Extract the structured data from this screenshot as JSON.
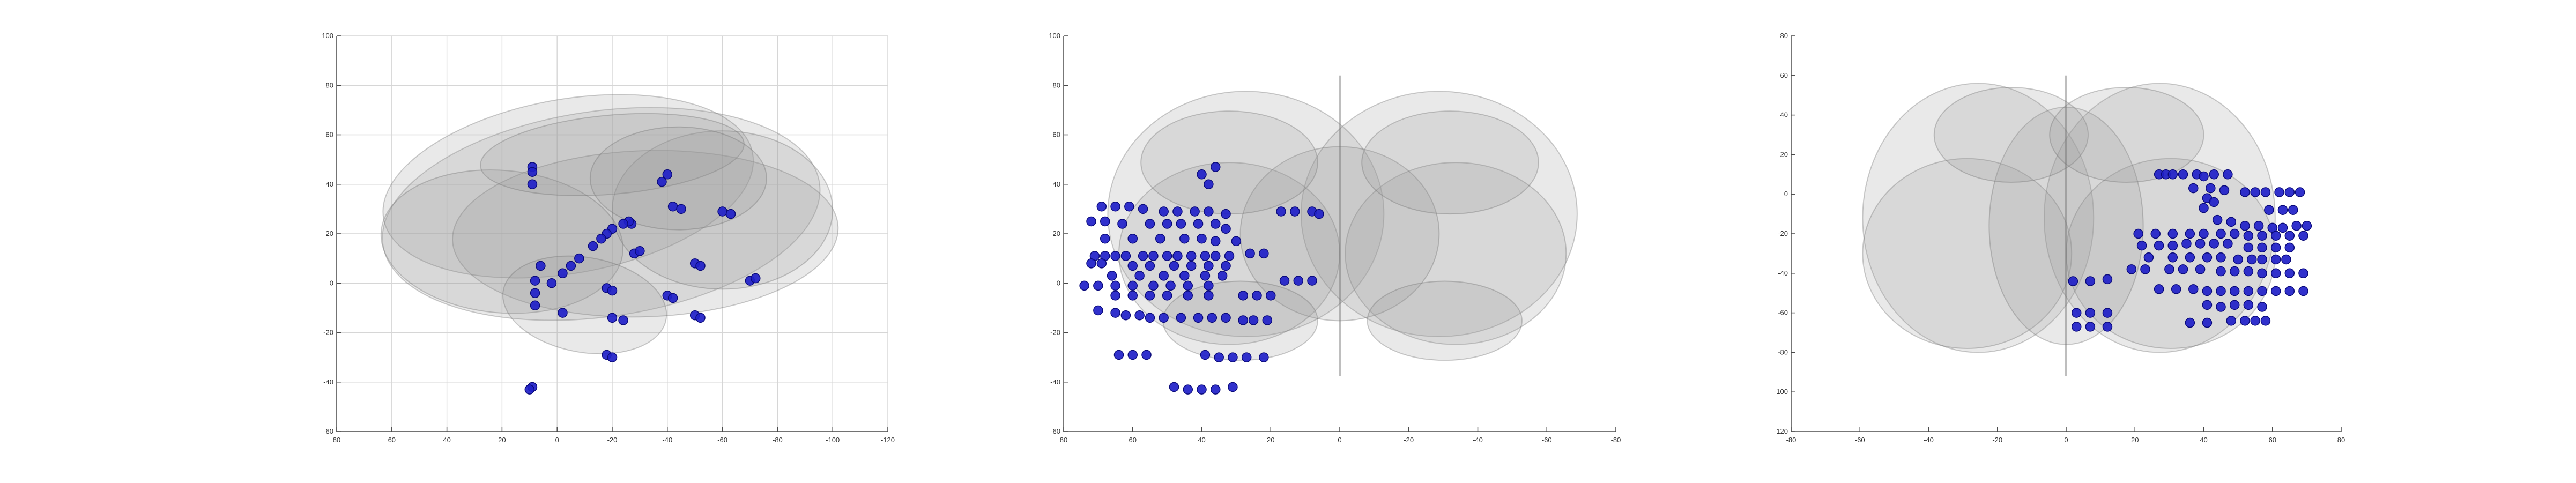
{
  "figure": {
    "background": "#ffffff",
    "brain_fill": "#9a9a9a",
    "brain_edge": "#6e6e6e",
    "electrode_color": "#1f1fc8",
    "electrode_edge": "#0a0a7a",
    "grid_color": "#d6d6d6",
    "axis_color": "#4a4a4a"
  },
  "chart_data": [
    {
      "type": "scatter",
      "view": "sagittal",
      "title": "",
      "xlabel": "",
      "ylabel": "",
      "grid": true,
      "xlim": [
        80,
        -120
      ],
      "ylim": [
        -60,
        100
      ],
      "xticks": [
        80,
        60,
        40,
        20,
        0,
        -20,
        -40,
        -60,
        -80,
        -100,
        -120
      ],
      "yticks": [
        -60,
        -40,
        -20,
        0,
        20,
        40,
        60,
        80,
        100
      ],
      "points": [
        {
          "x": 9,
          "y": 47
        },
        {
          "x": 9,
          "y": 45
        },
        {
          "x": 9,
          "y": 40
        },
        {
          "x": -38,
          "y": 41
        },
        {
          "x": -40,
          "y": 44
        },
        {
          "x": -42,
          "y": 31
        },
        {
          "x": -45,
          "y": 30
        },
        {
          "x": -60,
          "y": 29
        },
        {
          "x": -63,
          "y": 28
        },
        {
          "x": -27,
          "y": 24
        },
        {
          "x": -26,
          "y": 25
        },
        {
          "x": -24,
          "y": 24
        },
        {
          "x": -20,
          "y": 22
        },
        {
          "x": -18,
          "y": 20
        },
        {
          "x": -16,
          "y": 18
        },
        {
          "x": -13,
          "y": 15
        },
        {
          "x": -28,
          "y": 12
        },
        {
          "x": -30,
          "y": 13
        },
        {
          "x": -8,
          "y": 10
        },
        {
          "x": -5,
          "y": 7
        },
        {
          "x": -2,
          "y": 4
        },
        {
          "x": 2,
          "y": 0
        },
        {
          "x": 6,
          "y": 7
        },
        {
          "x": 8,
          "y": 1
        },
        {
          "x": 8,
          "y": -4
        },
        {
          "x": 8,
          "y": -9
        },
        {
          "x": -50,
          "y": 8
        },
        {
          "x": -52,
          "y": 7
        },
        {
          "x": -70,
          "y": 1
        },
        {
          "x": -72,
          "y": 2
        },
        {
          "x": -18,
          "y": -2
        },
        {
          "x": -20,
          "y": -3
        },
        {
          "x": -40,
          "y": -5
        },
        {
          "x": -42,
          "y": -6
        },
        {
          "x": -2,
          "y": -12
        },
        {
          "x": -20,
          "y": -14
        },
        {
          "x": -24,
          "y": -15
        },
        {
          "x": -50,
          "y": -13
        },
        {
          "x": -52,
          "y": -14
        },
        {
          "x": -18,
          "y": -29
        },
        {
          "x": -20,
          "y": -30
        },
        {
          "x": 9,
          "y": -42
        },
        {
          "x": 10,
          "y": -43
        }
      ]
    },
    {
      "type": "scatter",
      "view": "coronal",
      "title": "",
      "xlabel": "",
      "ylabel": "",
      "grid": false,
      "xlim": [
        80,
        -80
      ],
      "ylim": [
        -60,
        100
      ],
      "xticks": [
        80,
        60,
        40,
        20,
        0,
        -20,
        -40,
        -60,
        -80
      ],
      "yticks": [
        -60,
        -40,
        -20,
        0,
        20,
        40,
        60,
        80,
        100
      ],
      "points": [
        {
          "x": 36,
          "y": 47
        },
        {
          "x": 40,
          "y": 44
        },
        {
          "x": 38,
          "y": 40
        },
        {
          "x": 69,
          "y": 31
        },
        {
          "x": 65,
          "y": 31
        },
        {
          "x": 61,
          "y": 31
        },
        {
          "x": 57,
          "y": 30
        },
        {
          "x": 51,
          "y": 29
        },
        {
          "x": 47,
          "y": 29
        },
        {
          "x": 42,
          "y": 29
        },
        {
          "x": 38,
          "y": 29
        },
        {
          "x": 33,
          "y": 28
        },
        {
          "x": 17,
          "y": 29
        },
        {
          "x": 13,
          "y": 29
        },
        {
          "x": 8,
          "y": 29
        },
        {
          "x": 6,
          "y": 28
        },
        {
          "x": 72,
          "y": 25
        },
        {
          "x": 68,
          "y": 25
        },
        {
          "x": 63,
          "y": 24
        },
        {
          "x": 55,
          "y": 24
        },
        {
          "x": 50,
          "y": 24
        },
        {
          "x": 46,
          "y": 24
        },
        {
          "x": 41,
          "y": 24
        },
        {
          "x": 36,
          "y": 24
        },
        {
          "x": 33,
          "y": 22
        },
        {
          "x": 68,
          "y": 18
        },
        {
          "x": 60,
          "y": 18
        },
        {
          "x": 52,
          "y": 18
        },
        {
          "x": 45,
          "y": 18
        },
        {
          "x": 40,
          "y": 18
        },
        {
          "x": 36,
          "y": 17
        },
        {
          "x": 30,
          "y": 17
        },
        {
          "x": 71,
          "y": 11
        },
        {
          "x": 68,
          "y": 11
        },
        {
          "x": 65,
          "y": 11
        },
        {
          "x": 62,
          "y": 11
        },
        {
          "x": 57,
          "y": 11
        },
        {
          "x": 54,
          "y": 11
        },
        {
          "x": 50,
          "y": 11
        },
        {
          "x": 47,
          "y": 11
        },
        {
          "x": 43,
          "y": 11
        },
        {
          "x": 39,
          "y": 11
        },
        {
          "x": 36,
          "y": 11
        },
        {
          "x": 32,
          "y": 11
        },
        {
          "x": 26,
          "y": 12
        },
        {
          "x": 22,
          "y": 12
        },
        {
          "x": 72,
          "y": 8
        },
        {
          "x": 69,
          "y": 8
        },
        {
          "x": 60,
          "y": 7
        },
        {
          "x": 55,
          "y": 7
        },
        {
          "x": 48,
          "y": 7
        },
        {
          "x": 43,
          "y": 7
        },
        {
          "x": 38,
          "y": 7
        },
        {
          "x": 33,
          "y": 7
        },
        {
          "x": 66,
          "y": 3
        },
        {
          "x": 58,
          "y": 3
        },
        {
          "x": 51,
          "y": 3
        },
        {
          "x": 45,
          "y": 3
        },
        {
          "x": 39,
          "y": 3
        },
        {
          "x": 34,
          "y": 3
        },
        {
          "x": 74,
          "y": -1
        },
        {
          "x": 70,
          "y": -1
        },
        {
          "x": 65,
          "y": -1
        },
        {
          "x": 60,
          "y": -1
        },
        {
          "x": 54,
          "y": -1
        },
        {
          "x": 49,
          "y": -1
        },
        {
          "x": 44,
          "y": -1
        },
        {
          "x": 38,
          "y": -1
        },
        {
          "x": 16,
          "y": 1
        },
        {
          "x": 12,
          "y": 1
        },
        {
          "x": 8,
          "y": 1
        },
        {
          "x": 65,
          "y": -5
        },
        {
          "x": 60,
          "y": -5
        },
        {
          "x": 55,
          "y": -5
        },
        {
          "x": 50,
          "y": -5
        },
        {
          "x": 44,
          "y": -5
        },
        {
          "x": 38,
          "y": -5
        },
        {
          "x": 28,
          "y": -5
        },
        {
          "x": 24,
          "y": -5
        },
        {
          "x": 20,
          "y": -5
        },
        {
          "x": 70,
          "y": -11
        },
        {
          "x": 65,
          "y": -12
        },
        {
          "x": 62,
          "y": -13
        },
        {
          "x": 58,
          "y": -13
        },
        {
          "x": 55,
          "y": -14
        },
        {
          "x": 51,
          "y": -14
        },
        {
          "x": 46,
          "y": -14
        },
        {
          "x": 41,
          "y": -14
        },
        {
          "x": 37,
          "y": -14
        },
        {
          "x": 33,
          "y": -14
        },
        {
          "x": 28,
          "y": -15
        },
        {
          "x": 25,
          "y": -15
        },
        {
          "x": 21,
          "y": -15
        },
        {
          "x": 64,
          "y": -29
        },
        {
          "x": 60,
          "y": -29
        },
        {
          "x": 56,
          "y": -29
        },
        {
          "x": 39,
          "y": -29
        },
        {
          "x": 35,
          "y": -30
        },
        {
          "x": 31,
          "y": -30
        },
        {
          "x": 27,
          "y": -30
        },
        {
          "x": 22,
          "y": -30
        },
        {
          "x": 48,
          "y": -42
        },
        {
          "x": 44,
          "y": -43
        },
        {
          "x": 40,
          "y": -43
        },
        {
          "x": 36,
          "y": -43
        },
        {
          "x": 31,
          "y": -42
        }
      ]
    },
    {
      "type": "scatter",
      "view": "axial",
      "title": "",
      "xlabel": "",
      "ylabel": "",
      "grid": false,
      "xlim": [
        -80,
        80
      ],
      "ylim": [
        -120,
        80
      ],
      "xticks": [
        -80,
        -60,
        -40,
        -20,
        0,
        20,
        40,
        60,
        80
      ],
      "yticks": [
        -120,
        -100,
        -80,
        -60,
        -40,
        -20,
        0,
        20,
        40,
        60,
        80
      ],
      "points": [
        {
          "x": 27,
          "y": 10
        },
        {
          "x": 29,
          "y": 10
        },
        {
          "x": 31,
          "y": 10
        },
        {
          "x": 34,
          "y": 10
        },
        {
          "x": 38,
          "y": 10
        },
        {
          "x": 40,
          "y": 9
        },
        {
          "x": 43,
          "y": 10
        },
        {
          "x": 47,
          "y": 10
        },
        {
          "x": 37,
          "y": 3
        },
        {
          "x": 42,
          "y": 3
        },
        {
          "x": 46,
          "y": 2
        },
        {
          "x": 52,
          "y": 1
        },
        {
          "x": 55,
          "y": 1
        },
        {
          "x": 58,
          "y": 1
        },
        {
          "x": 62,
          "y": 1
        },
        {
          "x": 65,
          "y": 1
        },
        {
          "x": 68,
          "y": 1
        },
        {
          "x": 41,
          "y": -2
        },
        {
          "x": 43,
          "y": -4
        },
        {
          "x": 40,
          "y": -7
        },
        {
          "x": 59,
          "y": -8
        },
        {
          "x": 63,
          "y": -8
        },
        {
          "x": 66,
          "y": -8
        },
        {
          "x": 44,
          "y": -13
        },
        {
          "x": 48,
          "y": -14
        },
        {
          "x": 52,
          "y": -16
        },
        {
          "x": 56,
          "y": -16
        },
        {
          "x": 60,
          "y": -17
        },
        {
          "x": 63,
          "y": -17
        },
        {
          "x": 67,
          "y": -16
        },
        {
          "x": 70,
          "y": -16
        },
        {
          "x": 21,
          "y": -20
        },
        {
          "x": 26,
          "y": -20
        },
        {
          "x": 31,
          "y": -20
        },
        {
          "x": 36,
          "y": -20
        },
        {
          "x": 40,
          "y": -20
        },
        {
          "x": 45,
          "y": -20
        },
        {
          "x": 49,
          "y": -20
        },
        {
          "x": 53,
          "y": -21
        },
        {
          "x": 57,
          "y": -21
        },
        {
          "x": 61,
          "y": -21
        },
        {
          "x": 65,
          "y": -21
        },
        {
          "x": 69,
          "y": -21
        },
        {
          "x": 22,
          "y": -26
        },
        {
          "x": 27,
          "y": -26
        },
        {
          "x": 31,
          "y": -26
        },
        {
          "x": 35,
          "y": -25
        },
        {
          "x": 39,
          "y": -25
        },
        {
          "x": 43,
          "y": -25
        },
        {
          "x": 47,
          "y": -25
        },
        {
          "x": 53,
          "y": -27
        },
        {
          "x": 57,
          "y": -27
        },
        {
          "x": 61,
          "y": -27
        },
        {
          "x": 65,
          "y": -27
        },
        {
          "x": 24,
          "y": -32
        },
        {
          "x": 31,
          "y": -32
        },
        {
          "x": 36,
          "y": -32
        },
        {
          "x": 41,
          "y": -32
        },
        {
          "x": 45,
          "y": -32
        },
        {
          "x": 50,
          "y": -33
        },
        {
          "x": 54,
          "y": -33
        },
        {
          "x": 57,
          "y": -33
        },
        {
          "x": 61,
          "y": -33
        },
        {
          "x": 64,
          "y": -33
        },
        {
          "x": 19,
          "y": -38
        },
        {
          "x": 23,
          "y": -38
        },
        {
          "x": 30,
          "y": -38
        },
        {
          "x": 34,
          "y": -38
        },
        {
          "x": 39,
          "y": -38
        },
        {
          "x": 45,
          "y": -39
        },
        {
          "x": 49,
          "y": -39
        },
        {
          "x": 53,
          "y": -39
        },
        {
          "x": 57,
          "y": -40
        },
        {
          "x": 61,
          "y": -40
        },
        {
          "x": 65,
          "y": -40
        },
        {
          "x": 69,
          "y": -40
        },
        {
          "x": 2,
          "y": -44
        },
        {
          "x": 7,
          "y": -44
        },
        {
          "x": 12,
          "y": -43
        },
        {
          "x": 27,
          "y": -48
        },
        {
          "x": 32,
          "y": -48
        },
        {
          "x": 37,
          "y": -48
        },
        {
          "x": 41,
          "y": -49
        },
        {
          "x": 45,
          "y": -49
        },
        {
          "x": 49,
          "y": -49
        },
        {
          "x": 53,
          "y": -49
        },
        {
          "x": 57,
          "y": -49
        },
        {
          "x": 61,
          "y": -49
        },
        {
          "x": 65,
          "y": -49
        },
        {
          "x": 69,
          "y": -49
        },
        {
          "x": 41,
          "y": -56
        },
        {
          "x": 45,
          "y": -57
        },
        {
          "x": 49,
          "y": -56
        },
        {
          "x": 53,
          "y": -56
        },
        {
          "x": 57,
          "y": -57
        },
        {
          "x": 3,
          "y": -60
        },
        {
          "x": 7,
          "y": -60
        },
        {
          "x": 12,
          "y": -60
        },
        {
          "x": 3,
          "y": -67
        },
        {
          "x": 7,
          "y": -67
        },
        {
          "x": 12,
          "y": -67
        },
        {
          "x": 36,
          "y": -65
        },
        {
          "x": 41,
          "y": -65
        },
        {
          "x": 48,
          "y": -64
        },
        {
          "x": 52,
          "y": -64
        },
        {
          "x": 55,
          "y": -64
        },
        {
          "x": 58,
          "y": -64
        }
      ]
    }
  ]
}
